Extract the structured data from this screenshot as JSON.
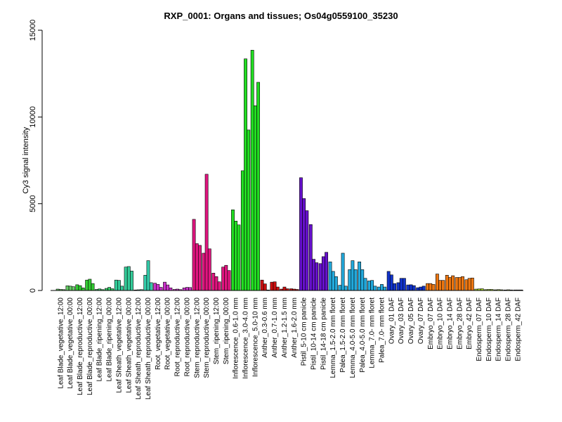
{
  "chart_data": {
    "type": "bar",
    "title": "RXP_0001: Organs and tissues; Os04g0559100_35230",
    "ylabel": "Cy3 signal intensity",
    "xlabel": "",
    "ylim": [
      0,
      15000
    ],
    "yticks": [
      0,
      5000,
      10000,
      15000
    ],
    "grid": false,
    "legend": "none",
    "groups": [
      {
        "label": "Leaf Blade_vegetative_12:00",
        "color": "#66CC66",
        "values": [
          80,
          60,
          50
        ]
      },
      {
        "label": "Leaf Blade_vegetative_00:00",
        "color": "#66CC66",
        "values": [
          270,
          250,
          220
        ]
      },
      {
        "label": "Leaf Blade_reproductive_12:00",
        "color": "#33CC33",
        "values": [
          330,
          280,
          150
        ]
      },
      {
        "label": "Leaf Blade_reproductive_00:00",
        "color": "#33CC33",
        "values": [
          600,
          650,
          400
        ]
      },
      {
        "label": "Leaf Blade_ripening_12:00",
        "color": "#33CC66",
        "values": [
          60,
          90,
          50
        ]
      },
      {
        "label": "Leaf Blade_ripening_00:00",
        "color": "#33CC66",
        "values": [
          120,
          180,
          100
        ]
      },
      {
        "label": "Leaf Sheath_vegetative_12:00",
        "color": "#33CC99",
        "values": [
          600,
          580,
          250
        ]
      },
      {
        "label": "Leaf Sheath_vegetative_00:00",
        "color": "#33CC99",
        "values": [
          1350,
          1380,
          1120
        ]
      },
      {
        "label": "Leaf Sheath_reproductive_12:00",
        "color": "#33CCAA",
        "values": [
          30,
          40,
          50
        ]
      },
      {
        "label": "Leaf Sheath_reproductive_00:00",
        "color": "#33CCAA",
        "values": [
          880,
          1720,
          450
        ]
      },
      {
        "label": "Root_vegetative_12:00",
        "color": "#CC33CC",
        "values": [
          420,
          350,
          180
        ]
      },
      {
        "label": "Root_vegetative_00:00",
        "color": "#CC33CC",
        "values": [
          480,
          320,
          150
        ]
      },
      {
        "label": "Root_reproductive_12:00",
        "color": "#CC33CC",
        "values": [
          60,
          80,
          50
        ]
      },
      {
        "label": "Root_reproductive_00:00",
        "color": "#CC33CC",
        "values": [
          150,
          180,
          170
        ]
      },
      {
        "label": "Stem_reproductive_12:00",
        "color": "#E0157F",
        "values": [
          4100,
          2700,
          2600
        ]
      },
      {
        "label": "Stem_reproductive_00:00",
        "color": "#E0157F",
        "values": [
          2150,
          6700,
          2400
        ]
      },
      {
        "label": "Stem_ripening_12:00",
        "color": "#E0157F",
        "values": [
          1000,
          800,
          500
        ]
      },
      {
        "label": "Stem_ripening_00:00",
        "color": "#E0157F",
        "values": [
          1350,
          1450,
          1150
        ]
      },
      {
        "label": "Inflorescence_0.6-1.0 mm",
        "color": "#22DD22",
        "values": [
          4650,
          4000,
          3780
        ]
      },
      {
        "label": "Inflorescence_3.0-4.0 mm",
        "color": "#22DD22",
        "values": [
          6900,
          13350,
          9250
        ]
      },
      {
        "label": "Inflorescence_5.0-10 mm",
        "color": "#22DD22",
        "values": [
          13850,
          10650,
          12000
        ]
      },
      {
        "label": "Anther_0.3-0.6 mm",
        "color": "#CC1111",
        "values": [
          600,
          380,
          30
        ]
      },
      {
        "label": "Anther_0.7-1.0 mm",
        "color": "#CC1111",
        "values": [
          480,
          500,
          200
        ]
      },
      {
        "label": "Anther_1.2-1.5 mm",
        "color": "#CC1111",
        "values": [
          80,
          200,
          100
        ]
      },
      {
        "label": "Anther_1.6-2.0 mm",
        "color": "#CC1111",
        "values": [
          100,
          80,
          60
        ]
      },
      {
        "label": "Pistil_5-10 cm panicle",
        "color": "#6611CC",
        "values": [
          6500,
          5300,
          4600
        ]
      },
      {
        "label": "Pistil_10-14 cm panicle",
        "color": "#6611CC",
        "values": [
          3800,
          1800,
          1600
        ]
      },
      {
        "label": "Pistil_14-18 cm panicle",
        "color": "#6611CC",
        "values": [
          1550,
          1950,
          2200
        ]
      },
      {
        "label": "Lemma_1.5-2.0 mm floret",
        "color": "#22AADD",
        "values": [
          1650,
          1100,
          800
        ]
      },
      {
        "label": "Palea_1.5-2.0 mm floret",
        "color": "#22AADD",
        "values": [
          300,
          2150,
          250
        ]
      },
      {
        "label": "Lemma_4.0-5.0 mm floret",
        "color": "#22AADD",
        "values": [
          1200,
          1720,
          1200
        ]
      },
      {
        "label": "Palea_4.0-5.0 mm floret",
        "color": "#22AADD",
        "values": [
          1650,
          1200,
          700
        ]
      },
      {
        "label": "Lemma_7.0- mm floret",
        "color": "#22AADD",
        "values": [
          550,
          580,
          250
        ]
      },
      {
        "label": "Palea_7.0- mm floret",
        "color": "#22AADD",
        "values": [
          200,
          350,
          200
        ]
      },
      {
        "label": "Ovary_01 DAF",
        "color": "#1133CC",
        "values": [
          1100,
          900,
          400
        ]
      },
      {
        "label": "Ovary_03 DAF",
        "color": "#1133CC",
        "values": [
          450,
          700,
          700
        ]
      },
      {
        "label": "Ovary_05 DAF",
        "color": "#1133CC",
        "values": [
          320,
          330,
          280
        ]
      },
      {
        "label": "Ovary_07 DAF",
        "color": "#1133CC",
        "values": [
          160,
          200,
          250
        ]
      },
      {
        "label": "Embryo_07 DAF",
        "color": "#EE7711",
        "values": [
          400,
          400,
          350
        ]
      },
      {
        "label": "Embryo_10 DAF",
        "color": "#EE7711",
        "values": [
          950,
          580,
          580
        ]
      },
      {
        "label": "Embryo_14 DAF",
        "color": "#EE7711",
        "values": [
          880,
          750,
          850
        ]
      },
      {
        "label": "Embryo_28 DAF",
        "color": "#EE7711",
        "values": [
          750,
          750,
          800
        ]
      },
      {
        "label": "Embryo_42 DAF",
        "color": "#EE7711",
        "values": [
          620,
          700,
          720
        ]
      },
      {
        "label": "Endosperm_07 DAF",
        "color": "#AADD22",
        "values": [
          80,
          90,
          100
        ]
      },
      {
        "label": "Endosperm_10 DAF",
        "color": "#AADD22",
        "values": [
          50,
          60,
          60
        ]
      },
      {
        "label": "Endosperm_14 DAF",
        "color": "#AADD22",
        "values": [
          40,
          50,
          40
        ]
      },
      {
        "label": "Endosperm_28 DAF",
        "color": "#AADD22",
        "values": [
          30,
          40,
          30
        ]
      },
      {
        "label": "Endosperm_42 DAF",
        "color": "#AADD22",
        "values": [
          30,
          30,
          30
        ]
      }
    ]
  }
}
